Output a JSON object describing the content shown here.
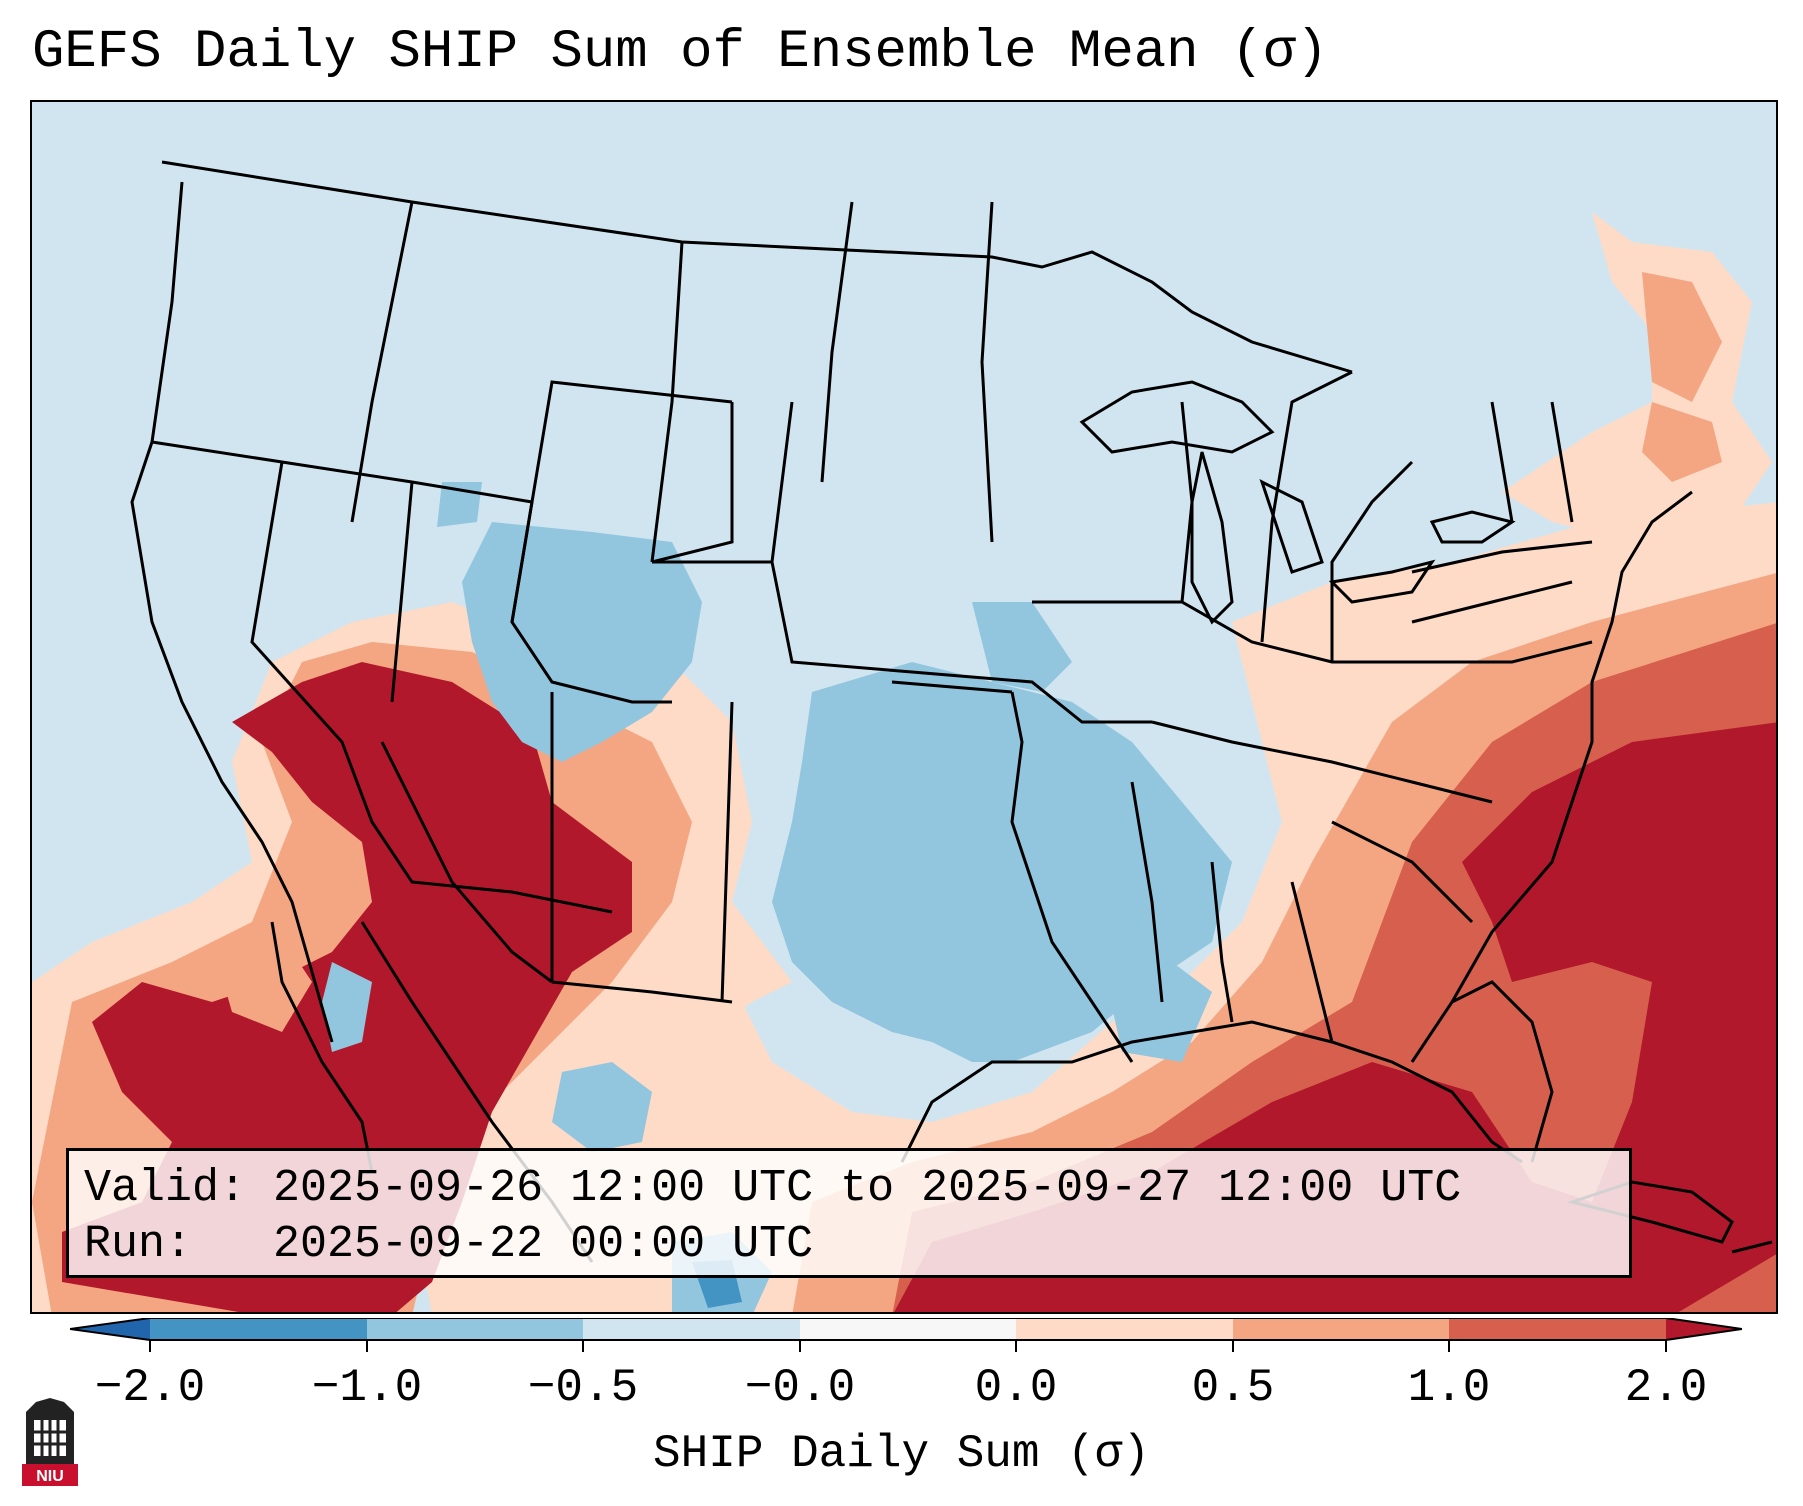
{
  "title": "GEFS Daily SHIP Sum of Ensemble Mean (σ)",
  "valid_line": "Valid: 2025-09-26 12:00 UTC to 2025-09-27 12:00 UTC",
  "run_line": "Run:   2025-09-22 00:00 UTC",
  "colorbar": {
    "label": "SHIP Daily Sum (σ)",
    "ticks": [
      "−2.0",
      "−1.0",
      "−0.5",
      "−0.0",
      "0.0",
      "0.5",
      "1.0",
      "2.0"
    ],
    "colors": [
      "#4393c3",
      "#92c5de",
      "#d1e5f0",
      "#f7f7f7",
      "#fddbc7",
      "#f4a582",
      "#d6604d",
      "#b2182b"
    ],
    "extend_low_color": "#2166ac",
    "extend_high_color": "#b2182b"
  },
  "logo_text": "NIU",
  "colors": {
    "neg_strong": "#4393c3",
    "neg_mod": "#92c5de",
    "neg_weak": "#d1e5f0",
    "pos_weak": "#fddbc7",
    "pos_mod": "#f4a582",
    "pos_strong": "#d6604d",
    "pos_max": "#b2182b"
  }
}
